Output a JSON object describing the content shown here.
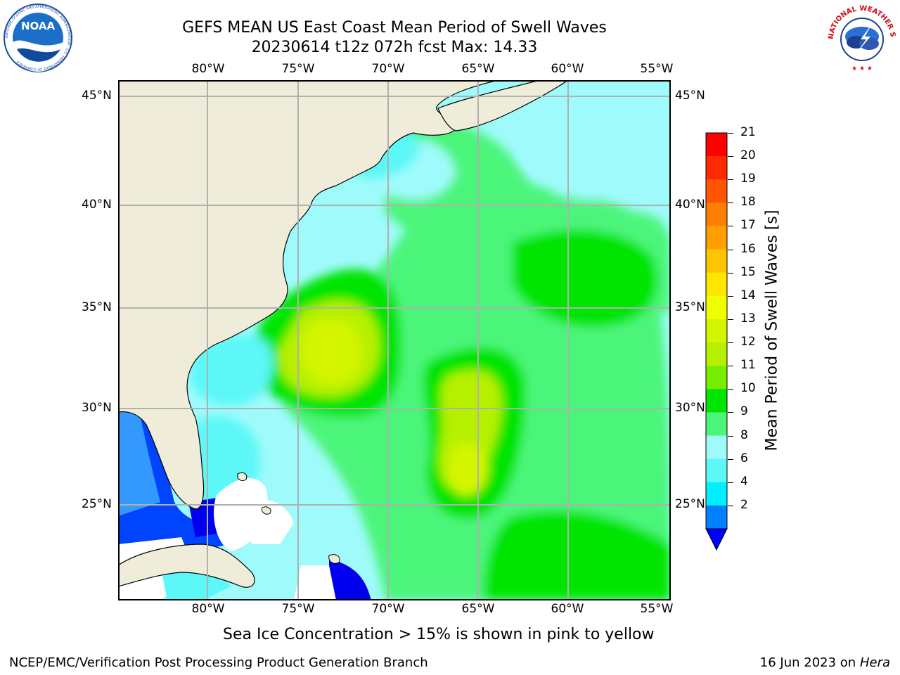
{
  "header": {
    "title_line1": "GEFS MEAN US East Coast Mean Period of Swell Waves",
    "title_line2": "20230614 t12z 072h fcst   Max: 14.33"
  },
  "logos": {
    "noaa_text": "NOAA",
    "noaa_ring_text": "NATIONAL OCEANIC AND ATMOSPHERIC ADMINISTRATION · U.S. DEPARTMENT OF COMMERCE",
    "nws_ring_text": "NATIONAL WEATHER SERVICE"
  },
  "map": {
    "lon_labels": [
      "80°W",
      "75°W",
      "70°W",
      "65°W",
      "60°W",
      "55°W"
    ],
    "lat_labels": [
      "45°N",
      "40°N",
      "35°N",
      "30°N",
      "25°N"
    ],
    "colors": {
      "land": "#efedda",
      "frame": "#000000",
      "grid": "#b0b0b0",
      "coast": "#000000"
    }
  },
  "colorbar": {
    "label": "Mean Period of Swell Waves [s]",
    "ticks": [
      "21",
      "20",
      "19",
      "18",
      "17",
      "16",
      "15",
      "14",
      "13",
      "12",
      "11",
      "10",
      "9",
      "8",
      "6",
      "4",
      "2"
    ],
    "colors": [
      "#ff0000",
      "#ff2a00",
      "#ff5500",
      "#ff7f00",
      "#ffa000",
      "#ffc400",
      "#ffe600",
      "#f0ff00",
      "#d4f500",
      "#b6f000",
      "#76ee00",
      "#00e500",
      "#4cf57a",
      "#9ffbfb",
      "#5cf7f7",
      "#00f0ff",
      "#0080ff"
    ],
    "extend_color": "#0000ff"
  },
  "caption": "Sea Ice Concentration > 15% is shown in pink to yellow",
  "footer": {
    "left": "NCEP/EMC/Verification Post Processing Product Generation Branch",
    "right_date": "16 Jun 2023 on",
    "right_host": "Hera"
  }
}
